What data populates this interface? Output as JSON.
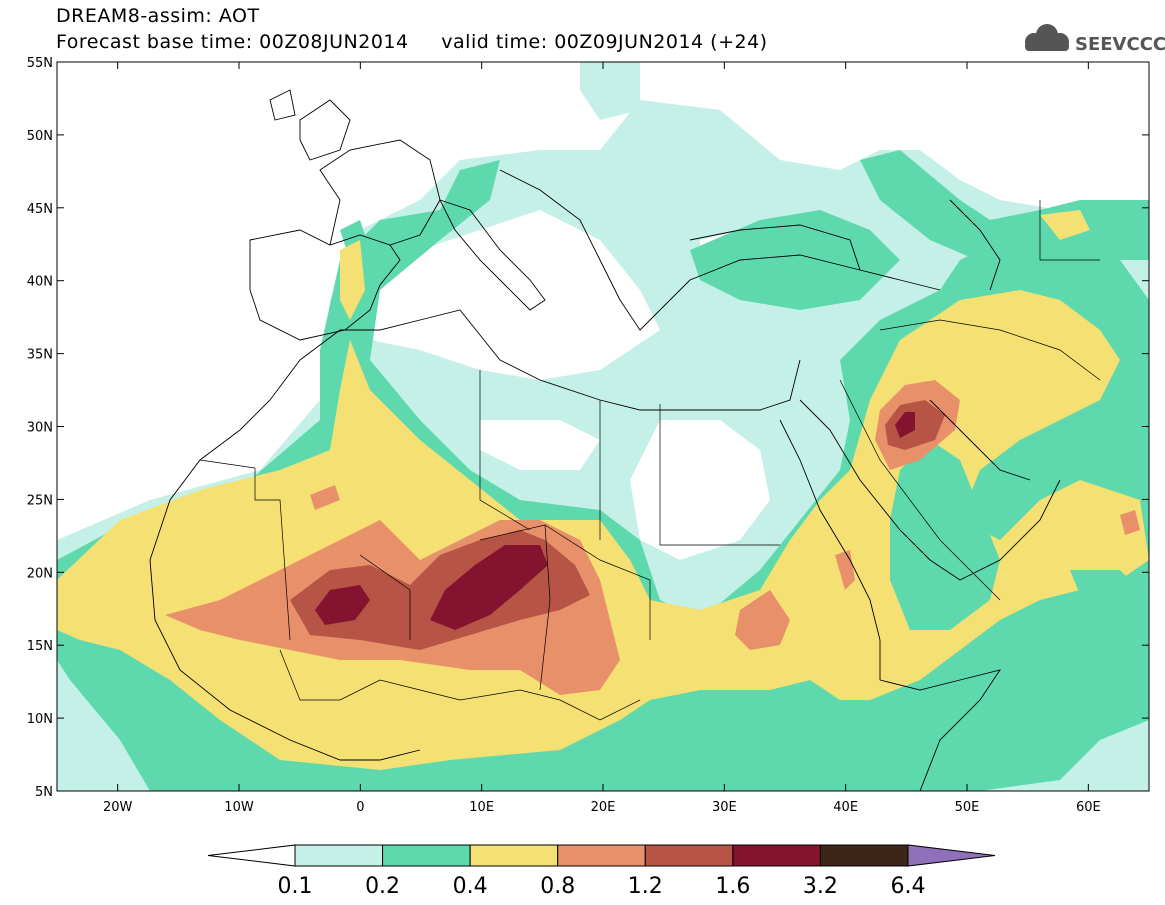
{
  "header": {
    "title": "DREAM8-assim: AOT",
    "subtitle": "Forecast base time: 00Z08JUN2014     valid time: 00Z09JUN2014 (+24)"
  },
  "logo": {
    "text": "SEEVCCC",
    "icon": "cloud-icon"
  },
  "map": {
    "lon_range": [
      -25,
      65
    ],
    "lat_range": [
      5,
      55
    ],
    "lat_ticks": [
      "55N",
      "50N",
      "45N",
      "40N",
      "35N",
      "30N",
      "25N",
      "20N",
      "15N",
      "10N",
      "5N"
    ],
    "lon_ticks": [
      "20W",
      "10W",
      "0",
      "10E",
      "20E",
      "30E",
      "40E",
      "50E",
      "60E"
    ],
    "lat_tick_values": [
      55,
      50,
      45,
      40,
      35,
      30,
      25,
      20,
      15,
      10,
      5
    ],
    "lon_tick_values": [
      -20,
      -10,
      0,
      10,
      20,
      30,
      40,
      50,
      60
    ]
  },
  "colorbar": {
    "labels": [
      "0.1",
      "0.2",
      "0.4",
      "0.8",
      "1.2",
      "1.6",
      "3.2",
      "6.4"
    ],
    "colors": [
      "#c4f0e8",
      "#5dd9ad",
      "#f5e173",
      "#e8906a",
      "#b65446",
      "#84132f",
      "#3d2615"
    ],
    "under_color": "#ffffff",
    "over_color": "#9070b8"
  },
  "colors": {
    "c1": "#c4f0e8",
    "c2": "#5dd9ad",
    "c3": "#f5e173",
    "c4": "#e8906a",
    "c5": "#b65446",
    "c6": "#84132f"
  }
}
